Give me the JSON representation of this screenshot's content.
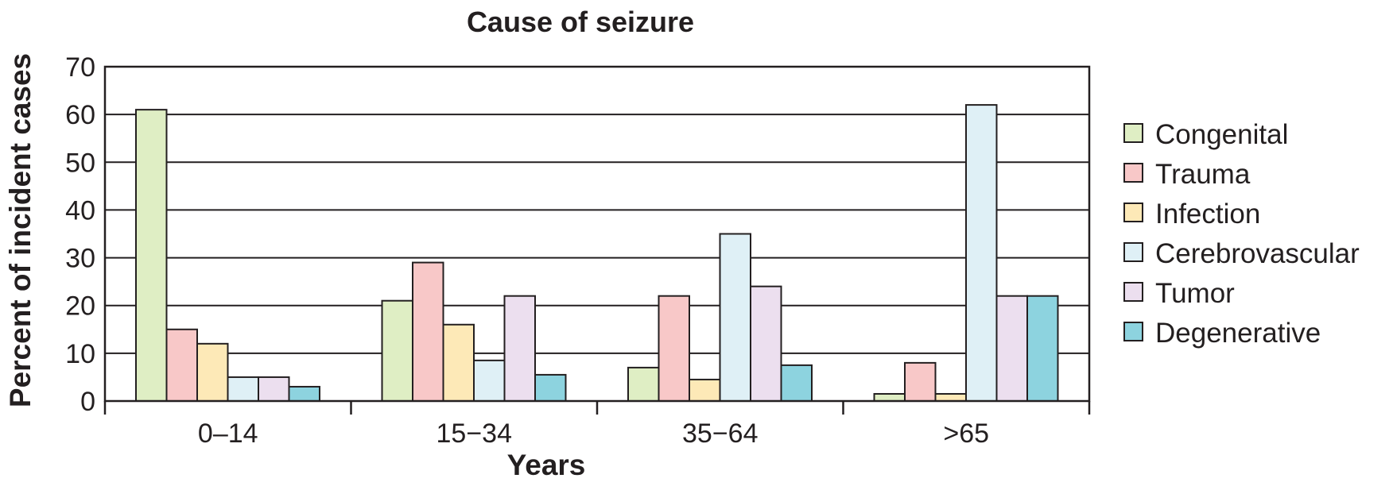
{
  "chart_data": {
    "type": "bar",
    "title": "Cause of seizure",
    "xlabel": "Years",
    "ylabel": "Percent of incident cases",
    "categories": [
      "0–14",
      "15−34",
      "35−64",
      ">65"
    ],
    "ylim": [
      0,
      70
    ],
    "yticks": [
      0,
      10,
      20,
      30,
      40,
      50,
      60,
      70
    ],
    "grid": true,
    "legend_position": "right",
    "series": [
      {
        "name": "Congenital",
        "color": "#dfeec4",
        "values": [
          61,
          21,
          7,
          1.5
        ]
      },
      {
        "name": "Trauma",
        "color": "#f8c8c8",
        "values": [
          15,
          29,
          22,
          8
        ]
      },
      {
        "name": "Infection",
        "color": "#fde9b7",
        "values": [
          12,
          16,
          4.5,
          1.5
        ]
      },
      {
        "name": "Cerebrovascular",
        "color": "#dff0f6",
        "values": [
          5,
          8.5,
          35,
          62
        ]
      },
      {
        "name": "Tumor",
        "color": "#ecdfef",
        "values": [
          5,
          22,
          24,
          22
        ]
      },
      {
        "name": "Degenerative",
        "color": "#8dd3df",
        "values": [
          3,
          5.5,
          7.5,
          22
        ]
      }
    ]
  }
}
